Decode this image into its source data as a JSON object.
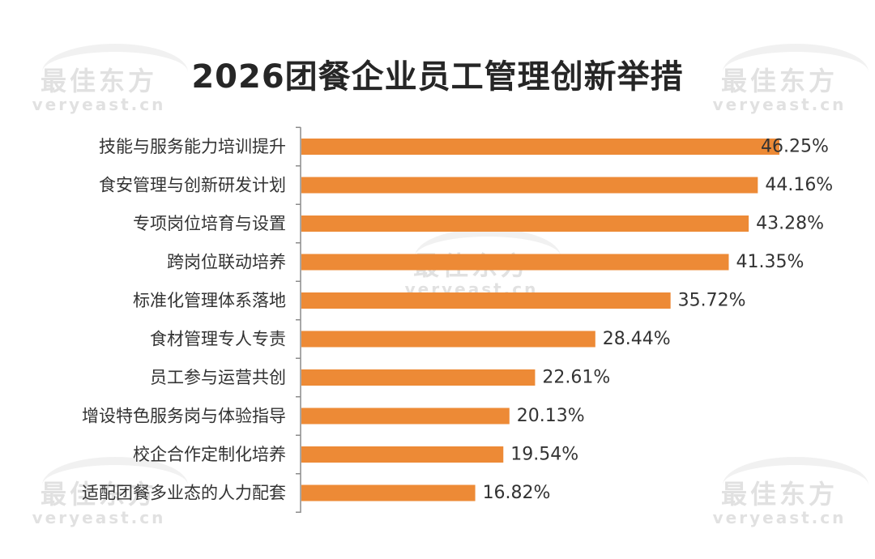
{
  "title": "2026团餐企业员工管理创新举措",
  "watermark": {
    "cn": "最佳东方",
    "en": "veryeast.cn"
  },
  "colors": {
    "bar": "#ED8A36",
    "axis": "#8c8c8c",
    "text": "#333333"
  },
  "chart_data": {
    "type": "bar",
    "orientation": "horizontal",
    "title": "2026团餐企业员工管理创新举措",
    "categories": [
      "技能与服务能力培训提升",
      "食安管理与创新研发计划",
      "专项岗位培育与设置",
      "跨岗位联动培养",
      "标准化管理体系落地",
      "食材管理专人专责",
      "员工参与运营共创",
      "增设特色服务岗与体验指导",
      "校企合作定制化培养",
      "适配团餐多业态的人力配套"
    ],
    "values": [
      46.25,
      44.16,
      43.28,
      41.35,
      35.72,
      28.44,
      22.61,
      20.13,
      19.54,
      16.82
    ],
    "value_labels": [
      "46.25%",
      "44.16%",
      "43.28%",
      "41.35%",
      "35.72%",
      "28.44%",
      "22.61%",
      "20.13%",
      "19.54%",
      "16.82%"
    ],
    "unit": "%",
    "xlim": [
      0,
      50
    ],
    "grid": false,
    "legend": "none"
  }
}
